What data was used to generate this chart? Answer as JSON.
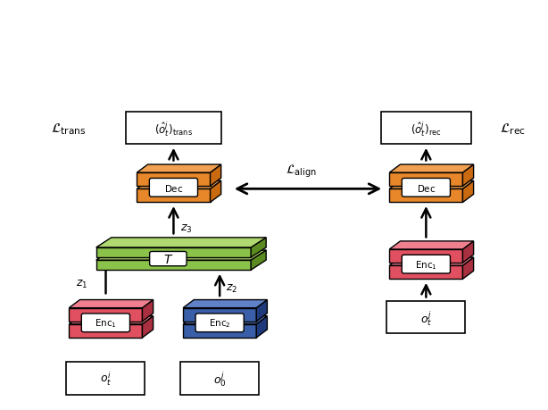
{
  "bg_color": "#ffffff",
  "orange_face": "#E8872A",
  "orange_side": "#C96A10",
  "orange_top": "#F0A050",
  "green_face": "#8BC34A",
  "green_side": "#5A8A20",
  "green_top": "#B0D870",
  "red_face": "#E05060",
  "red_side": "#A83040",
  "red_top": "#F08090",
  "blue_face": "#3A5FA8",
  "blue_side": "#1E3A7A",
  "blue_top": "#6080C8",
  "fig_width": 6.14,
  "fig_height": 4.6
}
